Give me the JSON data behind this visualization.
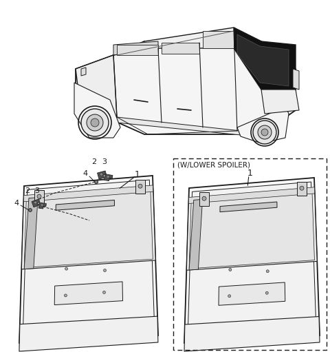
{
  "background_color": "#ffffff",
  "line_color": "#1a1a1a",
  "figsize": [
    4.8,
    5.11
  ],
  "dpi": 100,
  "labels": {
    "spoiler_text": "(W/LOWER SPOILER)",
    "num1": "1",
    "num2": "2",
    "num3": "3",
    "num4": "4"
  }
}
